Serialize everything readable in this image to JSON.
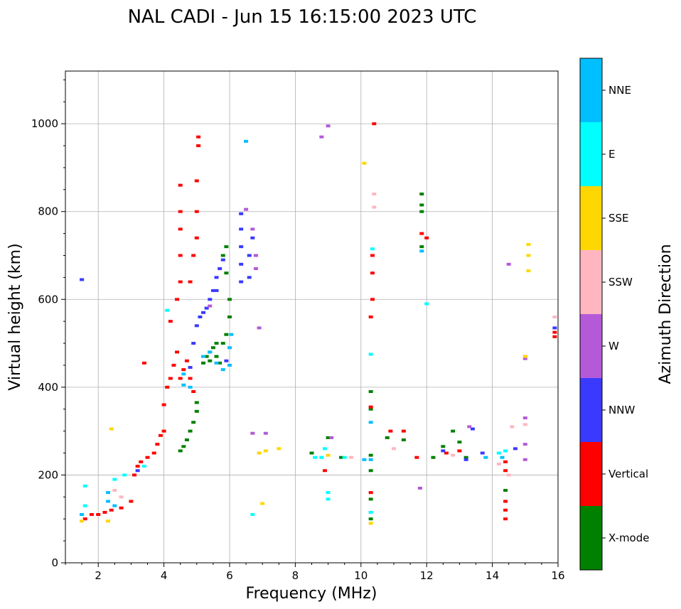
{
  "chart_data": {
    "type": "scatter",
    "title": "NAL CADI - Jun 15 16:15:00 2023 UTC",
    "xlabel": "Frequency (MHz)",
    "ylabel": "Virtual height (km)",
    "xlim": [
      1,
      16
    ],
    "ylim": [
      0,
      1120
    ],
    "x_ticks": [
      "2",
      "4",
      "6",
      "8",
      "10",
      "12",
      "14",
      "16"
    ],
    "x_tick_values": [
      2,
      4,
      6,
      8,
      10,
      12,
      14,
      16
    ],
    "y_ticks": [
      "0",
      "200",
      "400",
      "600",
      "800",
      "1000"
    ],
    "y_tick_values": [
      0,
      200,
      400,
      600,
      800,
      1000
    ],
    "grid": true,
    "colorbar": {
      "label": "Azimuth Direction",
      "categories": [
        {
          "name": "X-mode",
          "color": "#008000"
        },
        {
          "name": "Vertical",
          "color": "#ff0000"
        },
        {
          "name": "NNW",
          "color": "#3a3aff"
        },
        {
          "name": "W",
          "color": "#b45ad8"
        },
        {
          "name": "SSW",
          "color": "#ffb6c1"
        },
        {
          "name": "SSE",
          "color": "#ffd700"
        },
        {
          "name": "E",
          "color": "#00ffff"
        },
        {
          "name": "NNE",
          "color": "#00bfff"
        }
      ]
    },
    "series": [
      {
        "name": "X-mode",
        "points": [
          [
            4.5,
            255
          ],
          [
            4.6,
            265
          ],
          [
            4.7,
            280
          ],
          [
            4.8,
            300
          ],
          [
            4.9,
            320
          ],
          [
            5.0,
            345
          ],
          [
            5.0,
            365
          ],
          [
            5.2,
            455
          ],
          [
            5.3,
            470
          ],
          [
            5.4,
            480
          ],
          [
            5.5,
            490
          ],
          [
            5.6,
            470
          ],
          [
            5.7,
            455
          ],
          [
            5.8,
            500
          ],
          [
            5.9,
            520
          ],
          [
            6.0,
            560
          ],
          [
            6.0,
            600
          ],
          [
            5.9,
            660
          ],
          [
            5.8,
            700
          ],
          [
            5.9,
            720
          ],
          [
            5.6,
            500
          ],
          [
            5.4,
            460
          ],
          [
            10.3,
            100
          ],
          [
            10.3,
            145
          ],
          [
            10.3,
            210
          ],
          [
            10.3,
            245
          ],
          [
            10.3,
            350
          ],
          [
            10.3,
            390
          ],
          [
            9.0,
            285
          ],
          [
            10.8,
            285
          ],
          [
            11.3,
            280
          ],
          [
            12.2,
            240
          ],
          [
            12.5,
            265
          ],
          [
            12.8,
            300
          ],
          [
            13.0,
            275
          ],
          [
            13.2,
            240
          ],
          [
            11.85,
            800
          ],
          [
            11.85,
            815
          ],
          [
            11.85,
            840
          ],
          [
            11.85,
            720
          ],
          [
            8.5,
            250
          ],
          [
            9.4,
            240
          ],
          [
            14.4,
            165
          ]
        ]
      },
      {
        "name": "Vertical",
        "points": [
          [
            1.6,
            100
          ],
          [
            1.8,
            110
          ],
          [
            2.0,
            110
          ],
          [
            2.2,
            115
          ],
          [
            2.4,
            120
          ],
          [
            2.7,
            125
          ],
          [
            3.0,
            140
          ],
          [
            3.1,
            200
          ],
          [
            3.2,
            220
          ],
          [
            3.3,
            230
          ],
          [
            3.5,
            240
          ],
          [
            3.7,
            250
          ],
          [
            3.8,
            270
          ],
          [
            3.9,
            290
          ],
          [
            4.0,
            300
          ],
          [
            4.0,
            360
          ],
          [
            4.1,
            400
          ],
          [
            4.2,
            420
          ],
          [
            4.3,
            450
          ],
          [
            4.4,
            480
          ],
          [
            4.5,
            420
          ],
          [
            4.6,
            440
          ],
          [
            4.7,
            460
          ],
          [
            4.8,
            420
          ],
          [
            4.9,
            390
          ],
          [
            4.2,
            550
          ],
          [
            4.4,
            600
          ],
          [
            4.5,
            640
          ],
          [
            4.5,
            700
          ],
          [
            4.5,
            760
          ],
          [
            4.5,
            800
          ],
          [
            4.5,
            860
          ],
          [
            4.8,
            640
          ],
          [
            4.9,
            700
          ],
          [
            5.0,
            740
          ],
          [
            5.0,
            800
          ],
          [
            5.0,
            870
          ],
          [
            5.05,
            950
          ],
          [
            5.05,
            970
          ],
          [
            3.4,
            455
          ],
          [
            10.3,
            160
          ],
          [
            10.3,
            355
          ],
          [
            10.3,
            560
          ],
          [
            10.35,
            600
          ],
          [
            10.35,
            660
          ],
          [
            10.35,
            700
          ],
          [
            10.4,
            1000
          ],
          [
            10.9,
            300
          ],
          [
            11.3,
            300
          ],
          [
            11.7,
            240
          ],
          [
            12.0,
            740
          ],
          [
            11.85,
            750
          ],
          [
            12.6,
            250
          ],
          [
            13.0,
            255
          ],
          [
            14.4,
            100
          ],
          [
            14.4,
            120
          ],
          [
            14.4,
            140
          ],
          [
            14.4,
            210
          ],
          [
            14.4,
            230
          ],
          [
            15.9,
            515
          ],
          [
            15.9,
            525
          ],
          [
            8.9,
            210
          ]
        ]
      },
      {
        "name": "NNW",
        "points": [
          [
            1.5,
            645
          ],
          [
            3.2,
            210
          ],
          [
            4.8,
            445
          ],
          [
            4.9,
            500
          ],
          [
            5.0,
            540
          ],
          [
            5.1,
            560
          ],
          [
            5.2,
            570
          ],
          [
            5.3,
            580
          ],
          [
            5.4,
            600
          ],
          [
            5.5,
            620
          ],
          [
            5.6,
            650
          ],
          [
            5.7,
            670
          ],
          [
            5.8,
            690
          ],
          [
            5.6,
            620
          ],
          [
            6.35,
            640
          ],
          [
            6.35,
            680
          ],
          [
            6.35,
            720
          ],
          [
            6.35,
            760
          ],
          [
            6.35,
            795
          ],
          [
            6.6,
            650
          ],
          [
            6.6,
            700
          ],
          [
            6.7,
            740
          ],
          [
            12.5,
            255
          ],
          [
            13.4,
            305
          ],
          [
            13.7,
            250
          ],
          [
            13.2,
            235
          ],
          [
            14.7,
            260
          ],
          [
            15.9,
            535
          ],
          [
            5.9,
            460
          ]
        ]
      },
      {
        "name": "W",
        "points": [
          [
            6.5,
            805
          ],
          [
            6.7,
            760
          ],
          [
            6.8,
            670
          ],
          [
            6.8,
            700
          ],
          [
            6.9,
            535
          ],
          [
            8.8,
            970
          ],
          [
            9.0,
            995
          ],
          [
            9.1,
            285
          ],
          [
            6.7,
            295
          ],
          [
            7.1,
            295
          ],
          [
            11.8,
            170
          ],
          [
            13.3,
            310
          ],
          [
            14.5,
            680
          ],
          [
            15.0,
            270
          ],
          [
            15.0,
            465
          ],
          [
            15.0,
            330
          ],
          [
            15.0,
            235
          ],
          [
            5.4,
            585
          ]
        ]
      },
      {
        "name": "SSW",
        "points": [
          [
            2.5,
            165
          ],
          [
            2.7,
            150
          ],
          [
            10.4,
            840
          ],
          [
            10.4,
            810
          ],
          [
            10.3,
            115
          ],
          [
            9.7,
            240
          ],
          [
            11.0,
            260
          ],
          [
            14.2,
            225
          ],
          [
            14.6,
            310
          ],
          [
            15.0,
            315
          ],
          [
            15.0,
            470
          ],
          [
            15.9,
            560
          ],
          [
            14.5,
            200
          ],
          [
            12.8,
            245
          ]
        ]
      },
      {
        "name": "SSE",
        "points": [
          [
            1.5,
            95
          ],
          [
            2.3,
            95
          ],
          [
            6.9,
            250
          ],
          [
            7.1,
            255
          ],
          [
            7.5,
            260
          ],
          [
            9.0,
            245
          ],
          [
            10.3,
            90
          ],
          [
            10.1,
            910
          ],
          [
            7.0,
            135
          ],
          [
            2.4,
            305
          ],
          [
            15.1,
            725
          ],
          [
            15.1,
            700
          ],
          [
            15.1,
            665
          ],
          [
            15.0,
            470
          ]
        ]
      },
      {
        "name": "E",
        "points": [
          [
            1.5,
            110
          ],
          [
            1.6,
            130
          ],
          [
            1.6,
            175
          ],
          [
            2.5,
            190
          ],
          [
            2.8,
            200
          ],
          [
            3.4,
            220
          ],
          [
            4.1,
            575
          ],
          [
            6.7,
            110
          ],
          [
            8.6,
            240
          ],
          [
            8.8,
            240
          ],
          [
            8.9,
            260
          ],
          [
            9.0,
            160
          ],
          [
            9.0,
            145
          ],
          [
            9.5,
            240
          ],
          [
            10.3,
            115
          ],
          [
            10.35,
            715
          ],
          [
            10.3,
            475
          ],
          [
            14.2,
            250
          ],
          [
            14.4,
            255
          ],
          [
            12.0,
            590
          ]
        ]
      },
      {
        "name": "NNE",
        "points": [
          [
            1.5,
            110
          ],
          [
            2.3,
            140
          ],
          [
            2.3,
            160
          ],
          [
            2.5,
            130
          ],
          [
            4.6,
            405
          ],
          [
            4.8,
            400
          ],
          [
            5.2,
            470
          ],
          [
            5.4,
            480
          ],
          [
            5.6,
            455
          ],
          [
            5.8,
            440
          ],
          [
            6.0,
            490
          ],
          [
            6.05,
            520
          ],
          [
            6.0,
            450
          ],
          [
            6.5,
            960
          ],
          [
            10.3,
            235
          ],
          [
            10.3,
            320
          ],
          [
            10.1,
            235
          ],
          [
            11.85,
            710
          ],
          [
            14.3,
            240
          ],
          [
            13.8,
            240
          ],
          [
            4.6,
            430
          ]
        ]
      }
    ]
  }
}
